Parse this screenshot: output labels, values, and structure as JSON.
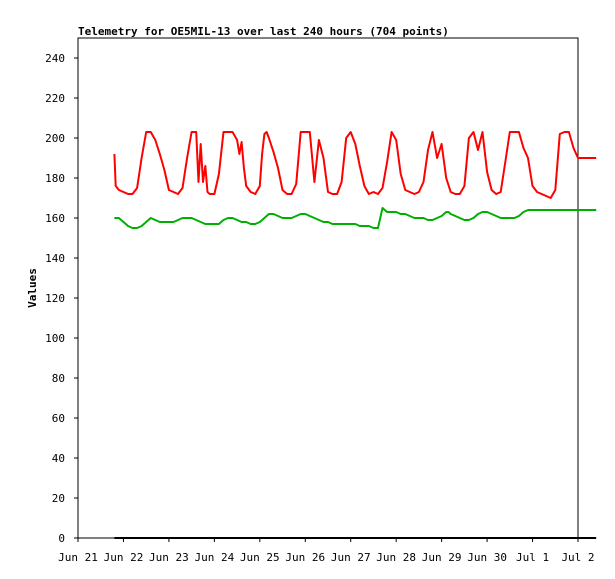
{
  "chart_data": {
    "type": "line",
    "title": "Telemetry for OE5MIL-13 over last 240 hours (704 points)",
    "xlabel": "",
    "ylabel": "Values",
    "xlim": [
      "Jun 21",
      "Jul 2"
    ],
    "ylim": [
      0,
      250
    ],
    "x_ticks": [
      "Jun 21",
      "Jun 22",
      "Jun 23",
      "Jun 24",
      "Jun 25",
      "Jun 26",
      "Jun 27",
      "Jun 28",
      "Jun 29",
      "Jun 30",
      "Jul 1",
      "Jul 2"
    ],
    "y_ticks": [
      0,
      20,
      40,
      60,
      80,
      100,
      120,
      140,
      160,
      180,
      200,
      220,
      240
    ],
    "grid": false,
    "legend": "none",
    "series": [
      {
        "color": "#ff0000",
        "x_days": [
          0.8,
          0.83,
          0.9,
          1.0,
          1.1,
          1.2,
          1.3,
          1.4,
          1.5,
          1.6,
          1.7,
          1.8,
          1.9,
          2.0,
          2.1,
          2.2,
          2.3,
          2.4,
          2.5,
          2.55,
          2.6,
          2.65,
          2.7,
          2.75,
          2.8,
          2.85,
          2.9,
          3.0,
          3.1,
          3.2,
          3.3,
          3.4,
          3.5,
          3.55,
          3.6,
          3.65,
          3.7,
          3.8,
          3.9,
          4.0,
          4.05,
          4.1,
          4.15,
          4.2,
          4.3,
          4.4,
          4.5,
          4.6,
          4.7,
          4.8,
          4.9,
          5.0,
          5.1,
          5.2,
          5.3,
          5.4,
          5.5,
          5.6,
          5.7,
          5.8,
          5.9,
          6.0,
          6.1,
          6.2,
          6.3,
          6.35,
          6.4,
          6.5,
          6.6,
          6.7,
          6.8,
          6.9,
          7.0,
          7.1,
          7.2,
          7.3,
          7.4,
          7.5,
          7.6,
          7.7,
          7.8,
          7.9,
          8.0,
          8.1,
          8.2,
          8.3,
          8.4,
          8.5,
          8.6,
          8.7,
          8.8,
          8.9,
          9.0,
          9.1,
          9.2,
          9.3,
          9.4,
          9.5,
          9.6,
          9.7,
          9.8,
          9.9,
          10.0,
          10.1,
          10.2,
          10.3,
          10.4,
          10.5,
          10.6,
          10.7,
          10.8,
          10.9,
          11.0,
          11.1,
          11.2,
          11.3,
          11.4
        ],
        "values": [
          192,
          176,
          174,
          173,
          172,
          172,
          175,
          190,
          203,
          203,
          199,
          192,
          184,
          174,
          173,
          172,
          175,
          190,
          203,
          203,
          203,
          178,
          197,
          178,
          186,
          173,
          172,
          172,
          182,
          203,
          203,
          203,
          199,
          192,
          198,
          185,
          176,
          173,
          172,
          176,
          192,
          202,
          203,
          200,
          193,
          185,
          174,
          172,
          172,
          177,
          203,
          203,
          203,
          178,
          199,
          190,
          173,
          172,
          172,
          178,
          200,
          203,
          197,
          186,
          176,
          174,
          172,
          173,
          172,
          175,
          188,
          203,
          199,
          182,
          174,
          173,
          172,
          173,
          178,
          194,
          203,
          190,
          197,
          180,
          173,
          172,
          172,
          176,
          200,
          203,
          194,
          203,
          183,
          174,
          172,
          173,
          188,
          203,
          203,
          203,
          195,
          190,
          176,
          173,
          172,
          171,
          170,
          174,
          202,
          203,
          203,
          195,
          190,
          190,
          190,
          190,
          190
        ]
      },
      {
        "color": "#00b000",
        "x_days": [
          0.8,
          0.9,
          1.0,
          1.1,
          1.2,
          1.3,
          1.4,
          1.5,
          1.6,
          1.7,
          1.8,
          1.9,
          2.0,
          2.1,
          2.2,
          2.3,
          2.4,
          2.5,
          2.6,
          2.7,
          2.8,
          2.9,
          3.0,
          3.1,
          3.2,
          3.3,
          3.4,
          3.5,
          3.6,
          3.7,
          3.8,
          3.9,
          4.0,
          4.1,
          4.2,
          4.3,
          4.4,
          4.5,
          4.6,
          4.7,
          4.8,
          4.9,
          5.0,
          5.1,
          5.2,
          5.3,
          5.4,
          5.5,
          5.6,
          5.7,
          5.8,
          5.9,
          6.0,
          6.1,
          6.2,
          6.3,
          6.4,
          6.5,
          6.6,
          6.7,
          6.8,
          6.9,
          7.0,
          7.1,
          7.2,
          7.3,
          7.4,
          7.5,
          7.6,
          7.7,
          7.8,
          7.9,
          8.0,
          8.1,
          8.15,
          8.2,
          8.3,
          8.4,
          8.5,
          8.6,
          8.7,
          8.8,
          8.9,
          9.0,
          9.1,
          9.2,
          9.3,
          9.4,
          9.5,
          9.6,
          9.7,
          9.8,
          9.9,
          10.0,
          10.1,
          10.2,
          10.3,
          10.4,
          10.5,
          10.6,
          10.7,
          10.8,
          10.9,
          11.0,
          11.1,
          11.2,
          11.3,
          11.4
        ],
        "values": [
          160,
          160,
          158,
          156,
          155,
          155,
          156,
          158,
          160,
          159,
          158,
          158,
          158,
          158,
          159,
          160,
          160,
          160,
          159,
          158,
          157,
          157,
          157,
          157,
          159,
          160,
          160,
          159,
          158,
          158,
          157,
          157,
          158,
          160,
          162,
          162,
          161,
          160,
          160,
          160,
          161,
          162,
          162,
          161,
          160,
          159,
          158,
          158,
          157,
          157,
          157,
          157,
          157,
          157,
          156,
          156,
          156,
          155,
          155,
          165,
          163,
          163,
          163,
          162,
          162,
          161,
          160,
          160,
          160,
          159,
          159,
          160,
          161,
          163,
          163,
          162,
          161,
          160,
          159,
          159,
          160,
          162,
          163,
          163,
          162,
          161,
          160,
          160,
          160,
          160,
          161,
          163,
          164,
          164,
          164,
          164,
          164,
          164,
          164,
          164,
          164,
          164,
          164,
          164,
          164,
          164,
          164,
          164
        ],
        "x_days_note": ""
      },
      {
        "color": "#000000",
        "x_days": [
          0.8,
          11.4
        ],
        "values": [
          0,
          0
        ]
      }
    ]
  }
}
